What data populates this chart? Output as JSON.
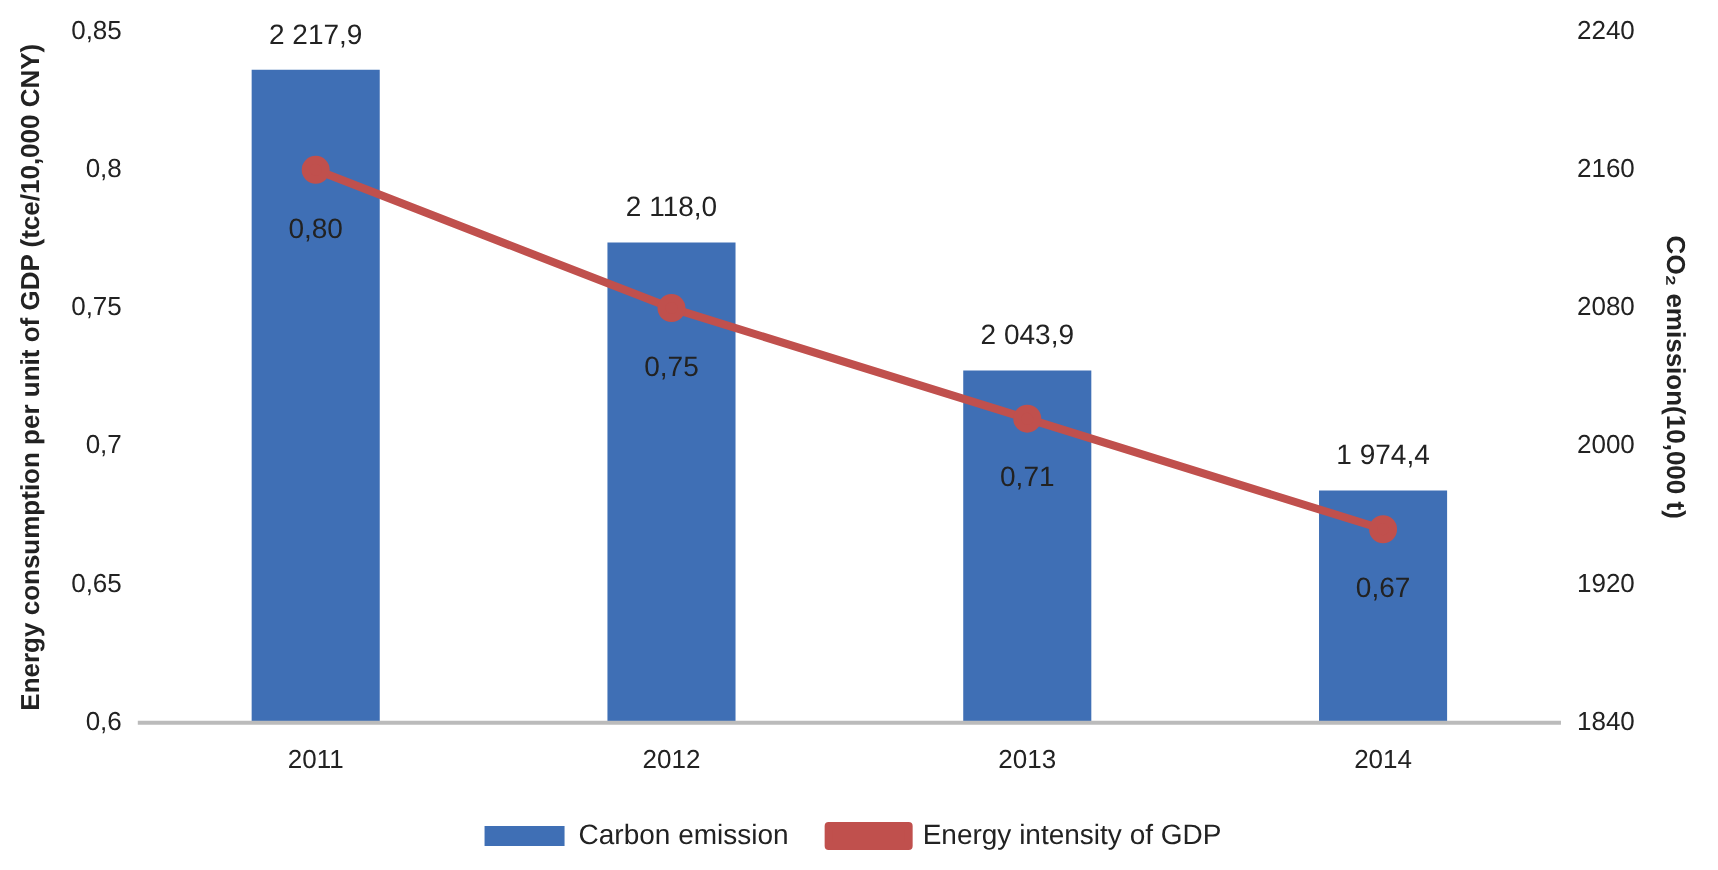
{
  "chart_data": {
    "type": "bar",
    "categories": [
      "2011",
      "2012",
      "2013",
      "2014"
    ],
    "ylabel": "Energy consumption per unit of GDP (tce/10,000 CNY)",
    "y2label": "CO₂ emission(10,000 t)",
    "series": [
      {
        "name": "Carbon emission",
        "axis": "y2",
        "color": "#3f6fb5",
        "values": [
          2217.9,
          2118.0,
          2043.9,
          1974.4
        ],
        "value_labels": [
          "2 217,9",
          "2 118,0",
          "2 043,9",
          "1 974,4"
        ]
      },
      {
        "name": "Energy intensity of GDP",
        "type": "line",
        "axis": "y",
        "color": "#c0504d",
        "marker": "circle",
        "values": [
          0.8,
          0.75,
          0.71,
          0.67
        ],
        "value_labels": [
          "0,80",
          "0,75",
          "0,71",
          "0,67"
        ]
      }
    ],
    "ylim": [
      0.6,
      0.85
    ],
    "yticks": [
      {
        "value": 0.6,
        "label": "0,6"
      },
      {
        "value": 0.65,
        "label": "0,65"
      },
      {
        "value": 0.7,
        "label": "0,7"
      },
      {
        "value": 0.75,
        "label": "0,75"
      },
      {
        "value": 0.8,
        "label": "0,8"
      },
      {
        "value": 0.85,
        "label": "0,85"
      }
    ],
    "y2lim": [
      1840,
      2240
    ],
    "y2ticks": [
      1840,
      1920,
      2000,
      2080,
      2160,
      2240
    ],
    "grid": false,
    "legend": "bottom"
  }
}
